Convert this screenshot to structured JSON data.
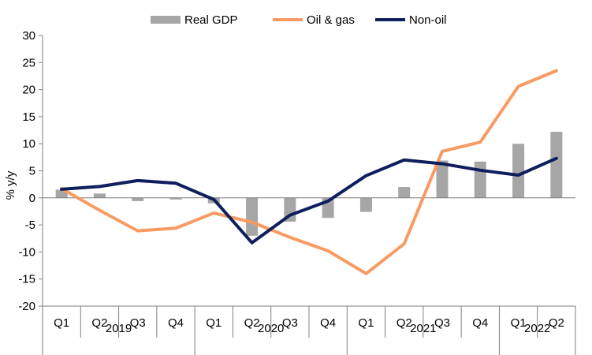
{
  "chart_data": {
    "type": "bar+line",
    "ylabel": "% y/y",
    "ylim": [
      -20,
      30
    ],
    "yticks": [
      -20,
      -15,
      -10,
      -5,
      0,
      5,
      10,
      15,
      20,
      25,
      30
    ],
    "grid": false,
    "legend_position": "top",
    "categories": [
      "Q1",
      "Q2",
      "Q3",
      "Q4",
      "Q1",
      "Q2",
      "Q3",
      "Q4",
      "Q1",
      "Q2",
      "Q3",
      "Q4",
      "Q1",
      "Q2"
    ],
    "year_groups": [
      {
        "label": "2019",
        "count": 4
      },
      {
        "label": "2020",
        "count": 4
      },
      {
        "label": "2021",
        "count": 4
      },
      {
        "label": "2022",
        "count": 2
      }
    ],
    "series": [
      {
        "name": "Real GDP",
        "type": "bar",
        "color": "#a6a6a6",
        "values": [
          1.5,
          0.8,
          -0.6,
          -0.3,
          -1.0,
          -7.0,
          -4.4,
          -3.7,
          -2.6,
          2.0,
          6.9,
          6.7,
          10.0,
          12.2
        ]
      },
      {
        "name": "Oil & gas",
        "type": "line",
        "color": "#f79b63",
        "values": [
          1.7,
          -2.3,
          -6.1,
          -5.6,
          -2.8,
          -4.5,
          -7.3,
          -9.8,
          -14.0,
          -8.5,
          8.6,
          10.3,
          20.6,
          23.5
        ]
      },
      {
        "name": "Non-oil",
        "type": "line",
        "color": "#0d1f5c",
        "values": [
          1.6,
          2.1,
          3.2,
          2.7,
          -0.3,
          -8.3,
          -3.2,
          -0.6,
          4.1,
          7.0,
          6.3,
          5.1,
          4.2,
          7.3
        ]
      }
    ]
  }
}
